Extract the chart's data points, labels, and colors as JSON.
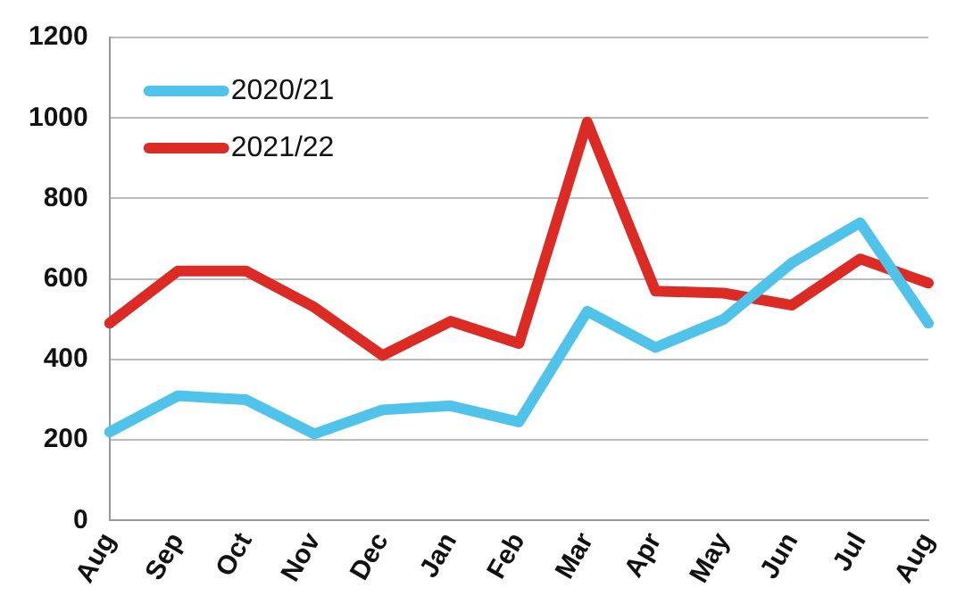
{
  "chart_data": {
    "type": "line",
    "categories": [
      "Aug",
      "Sep",
      "Oct",
      "Nov",
      "Dec",
      "Jan",
      "Feb",
      "Mar",
      "Apr",
      "May",
      "Jun",
      "Jul",
      "Aug"
    ],
    "series": [
      {
        "name": "2020/21",
        "color": "#4fc3ea",
        "values": [
          220,
          310,
          300,
          215,
          275,
          285,
          245,
          520,
          430,
          500,
          640,
          740,
          490
        ]
      },
      {
        "name": "2021/22",
        "color": "#dc2a24",
        "values": [
          490,
          620,
          620,
          530,
          410,
          495,
          440,
          990,
          570,
          565,
          535,
          650,
          590
        ]
      }
    ],
    "ylim": [
      0,
      1200
    ],
    "yticks": [
      0,
      200,
      400,
      600,
      800,
      1000,
      1200
    ],
    "grid": "y",
    "legend": "top left",
    "marker": "none",
    "line_style": "solid"
  }
}
